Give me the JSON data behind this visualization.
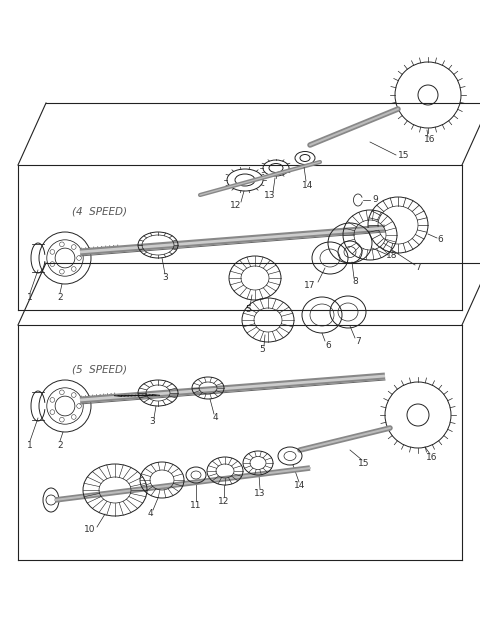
{
  "bg": "#ffffff",
  "lc": "#222222",
  "lw": 0.7,
  "fig_w": 4.8,
  "fig_h": 6.24,
  "dpi": 100
}
